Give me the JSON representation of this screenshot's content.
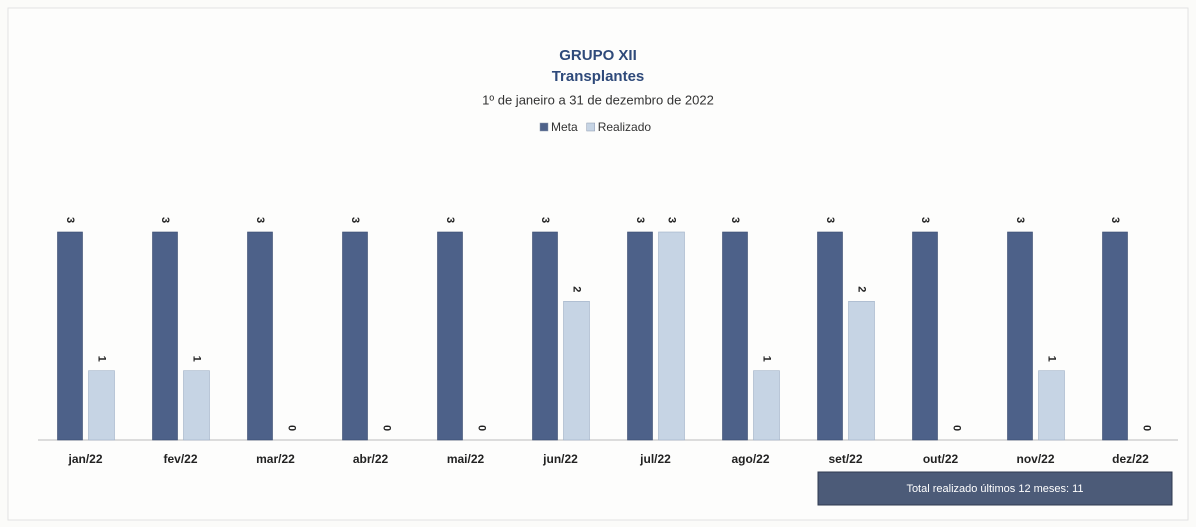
{
  "chart_data": {
    "type": "bar",
    "title": "GRUPO XII",
    "subtitle": "Transplantes",
    "period": "1º de janeiro a 31 de dezembro de 2022",
    "categories": [
      "jan/22",
      "fev/22",
      "mar/22",
      "abr/22",
      "mai/22",
      "jun/22",
      "jul/22",
      "ago/22",
      "set/22",
      "out/22",
      "nov/22",
      "dez/22"
    ],
    "series": [
      {
        "name": "Meta",
        "color": "#4d6189",
        "values": [
          3,
          3,
          3,
          3,
          3,
          3,
          3,
          3,
          3,
          3,
          3,
          3
        ]
      },
      {
        "name": "Realizado",
        "color": "#c6d4e4",
        "values": [
          1,
          1,
          0,
          0,
          0,
          2,
          3,
          1,
          2,
          0,
          1,
          0
        ]
      }
    ],
    "annotation": "Total realizado últimos 12 meses: 11",
    "legend": "top"
  }
}
